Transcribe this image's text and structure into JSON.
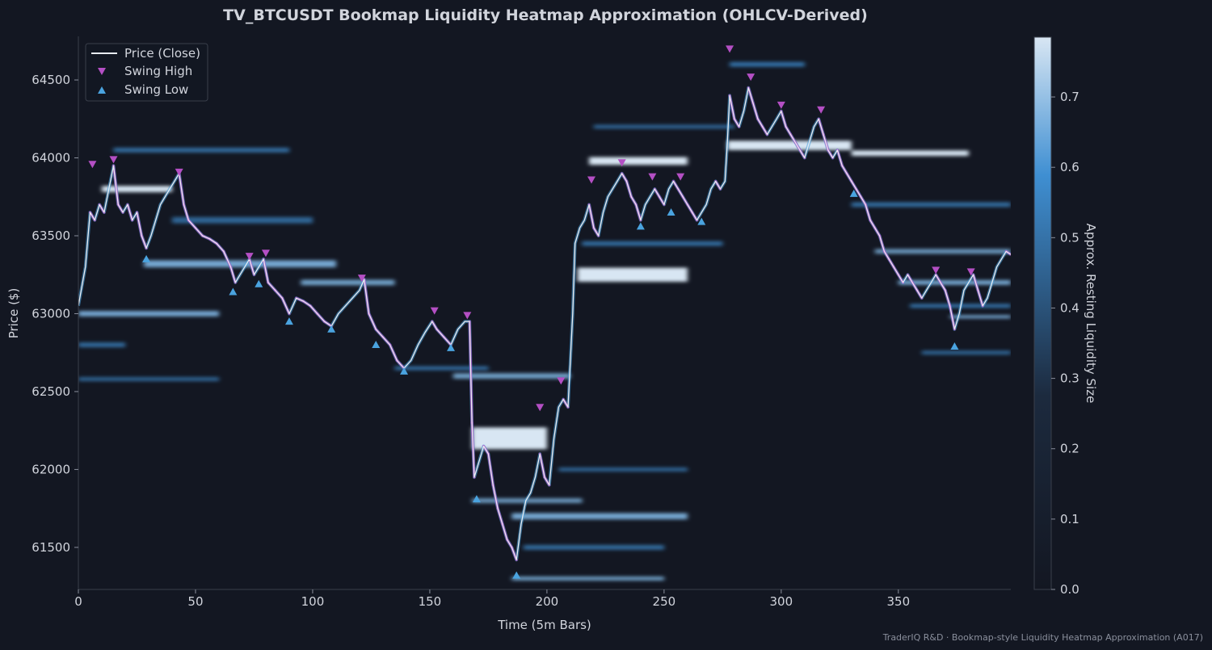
{
  "chart_data": {
    "type": "heatmap",
    "title": "TV_BTCUSDT Bookmap Liquidity Heatmap Approximation (OHLCV-Derived)",
    "xlabel": "Time (5m Bars)",
    "ylabel": "Price ($)",
    "xlim": [
      0,
      398
    ],
    "ylim": [
      61230,
      64780
    ],
    "x_ticks": [
      "0",
      "50",
      "100",
      "150",
      "200",
      "250",
      "300",
      "350"
    ],
    "x_tick_values": [
      0,
      50,
      100,
      150,
      200,
      250,
      300,
      350
    ],
    "y_ticks": [
      "61500",
      "62000",
      "62500",
      "63000",
      "63500",
      "64000",
      "64500"
    ],
    "y_tick_values": [
      61500,
      62000,
      62500,
      63000,
      63500,
      64000,
      64500
    ],
    "colorbar": {
      "label": "Approx. Resting Liquidity Size",
      "range": [
        0,
        0.785
      ],
      "ticks": [
        "0.0",
        "0.1",
        "0.2",
        "0.3",
        "0.4",
        "0.5",
        "0.6",
        "0.7"
      ],
      "tick_values": [
        0,
        0.1,
        0.2,
        0.3,
        0.4,
        0.5,
        0.6,
        0.7
      ]
    },
    "legend": {
      "placement": "top-left",
      "entries": [
        "Price (Close)",
        "Swing High",
        "Swing Low"
      ]
    },
    "series": [
      {
        "name": "Price (Close)",
        "points": [
          [
            0,
            63050
          ],
          [
            3,
            63300
          ],
          [
            5,
            63650
          ],
          [
            7,
            63600
          ],
          [
            9,
            63700
          ],
          [
            11,
            63650
          ],
          [
            13,
            63800
          ],
          [
            15,
            63950
          ],
          [
            17,
            63700
          ],
          [
            19,
            63650
          ],
          [
            21,
            63700
          ],
          [
            23,
            63600
          ],
          [
            25,
            63650
          ],
          [
            27,
            63500
          ],
          [
            29,
            63420
          ],
          [
            31,
            63500
          ],
          [
            33,
            63600
          ],
          [
            35,
            63700
          ],
          [
            37,
            63750
          ],
          [
            39,
            63800
          ],
          [
            41,
            63850
          ],
          [
            43,
            63900
          ],
          [
            45,
            63700
          ],
          [
            47,
            63600
          ],
          [
            50,
            63550
          ],
          [
            53,
            63500
          ],
          [
            56,
            63480
          ],
          [
            59,
            63450
          ],
          [
            62,
            63400
          ],
          [
            65,
            63300
          ],
          [
            67,
            63200
          ],
          [
            69,
            63250
          ],
          [
            71,
            63300
          ],
          [
            73,
            63350
          ],
          [
            75,
            63250
          ],
          [
            77,
            63300
          ],
          [
            79,
            63350
          ],
          [
            81,
            63200
          ],
          [
            84,
            63150
          ],
          [
            87,
            63100
          ],
          [
            90,
            63000
          ],
          [
            93,
            63100
          ],
          [
            96,
            63080
          ],
          [
            99,
            63050
          ],
          [
            102,
            63000
          ],
          [
            105,
            62950
          ],
          [
            108,
            62920
          ],
          [
            111,
            63000
          ],
          [
            114,
            63050
          ],
          [
            117,
            63100
          ],
          [
            120,
            63150
          ],
          [
            122,
            63220
          ],
          [
            124,
            63000
          ],
          [
            127,
            62900
          ],
          [
            130,
            62850
          ],
          [
            133,
            62800
          ],
          [
            136,
            62700
          ],
          [
            139,
            62650
          ],
          [
            142,
            62700
          ],
          [
            145,
            62800
          ],
          [
            148,
            62880
          ],
          [
            151,
            62950
          ],
          [
            153,
            62900
          ],
          [
            156,
            62850
          ],
          [
            159,
            62800
          ],
          [
            162,
            62900
          ],
          [
            165,
            62950
          ],
          [
            167,
            62950
          ],
          [
            168,
            62300
          ],
          [
            169,
            61950
          ],
          [
            171,
            62050
          ],
          [
            173,
            62150
          ],
          [
            175,
            62100
          ],
          [
            177,
            61900
          ],
          [
            179,
            61750
          ],
          [
            181,
            61650
          ],
          [
            183,
            61550
          ],
          [
            185,
            61500
          ],
          [
            187,
            61420
          ],
          [
            189,
            61650
          ],
          [
            191,
            61800
          ],
          [
            193,
            61850
          ],
          [
            195,
            61950
          ],
          [
            197,
            62100
          ],
          [
            199,
            61950
          ],
          [
            201,
            61900
          ],
          [
            203,
            62200
          ],
          [
            205,
            62400
          ],
          [
            207,
            62450
          ],
          [
            209,
            62400
          ],
          [
            211,
            63000
          ],
          [
            212,
            63450
          ],
          [
            214,
            63550
          ],
          [
            216,
            63600
          ],
          [
            218,
            63700
          ],
          [
            220,
            63550
          ],
          [
            222,
            63500
          ],
          [
            224,
            63650
          ],
          [
            226,
            63750
          ],
          [
            228,
            63800
          ],
          [
            230,
            63850
          ],
          [
            232,
            63900
          ],
          [
            234,
            63850
          ],
          [
            236,
            63750
          ],
          [
            238,
            63700
          ],
          [
            240,
            63600
          ],
          [
            242,
            63700
          ],
          [
            244,
            63750
          ],
          [
            246,
            63800
          ],
          [
            248,
            63750
          ],
          [
            250,
            63700
          ],
          [
            252,
            63800
          ],
          [
            254,
            63850
          ],
          [
            256,
            63800
          ],
          [
            258,
            63750
          ],
          [
            260,
            63700
          ],
          [
            262,
            63650
          ],
          [
            264,
            63600
          ],
          [
            266,
            63650
          ],
          [
            268,
            63700
          ],
          [
            270,
            63800
          ],
          [
            272,
            63850
          ],
          [
            274,
            63800
          ],
          [
            276,
            63850
          ],
          [
            277,
            64100
          ],
          [
            278,
            64400
          ],
          [
            280,
            64250
          ],
          [
            282,
            64200
          ],
          [
            284,
            64300
          ],
          [
            286,
            64450
          ],
          [
            288,
            64350
          ],
          [
            290,
            64250
          ],
          [
            292,
            64200
          ],
          [
            294,
            64150
          ],
          [
            296,
            64200
          ],
          [
            298,
            64250
          ],
          [
            300,
            64300
          ],
          [
            302,
            64200
          ],
          [
            304,
            64150
          ],
          [
            306,
            64100
          ],
          [
            308,
            64050
          ],
          [
            310,
            64000
          ],
          [
            312,
            64100
          ],
          [
            314,
            64200
          ],
          [
            316,
            64250
          ],
          [
            318,
            64150
          ],
          [
            320,
            64050
          ],
          [
            322,
            64000
          ],
          [
            324,
            64050
          ],
          [
            326,
            63950
          ],
          [
            328,
            63900
          ],
          [
            330,
            63850
          ],
          [
            332,
            63800
          ],
          [
            334,
            63750
          ],
          [
            336,
            63700
          ],
          [
            338,
            63600
          ],
          [
            340,
            63550
          ],
          [
            342,
            63500
          ],
          [
            344,
            63400
          ],
          [
            346,
            63350
          ],
          [
            348,
            63300
          ],
          [
            350,
            63250
          ],
          [
            352,
            63200
          ],
          [
            354,
            63250
          ],
          [
            356,
            63200
          ],
          [
            358,
            63150
          ],
          [
            360,
            63100
          ],
          [
            362,
            63150
          ],
          [
            364,
            63200
          ],
          [
            366,
            63250
          ],
          [
            368,
            63200
          ],
          [
            370,
            63150
          ],
          [
            372,
            63050
          ],
          [
            374,
            62900
          ],
          [
            376,
            63000
          ],
          [
            378,
            63150
          ],
          [
            380,
            63200
          ],
          [
            382,
            63250
          ],
          [
            384,
            63150
          ],
          [
            386,
            63050
          ],
          [
            388,
            63100
          ],
          [
            390,
            63200
          ],
          [
            392,
            63300
          ],
          [
            394,
            63350
          ],
          [
            396,
            63400
          ],
          [
            398,
            63380
          ]
        ]
      },
      {
        "name": "Swing High",
        "points": [
          [
            6,
            63960
          ],
          [
            15,
            63990
          ],
          [
            43,
            63910
          ],
          [
            73,
            63370
          ],
          [
            80,
            63390
          ],
          [
            121,
            63230
          ],
          [
            152,
            63020
          ],
          [
            166,
            62990
          ],
          [
            197,
            62400
          ],
          [
            206,
            62570
          ],
          [
            219,
            63860
          ],
          [
            232,
            63970
          ],
          [
            245,
            63880
          ],
          [
            257,
            63880
          ],
          [
            278,
            64700
          ],
          [
            287,
            64520
          ],
          [
            300,
            64340
          ],
          [
            317,
            64310
          ],
          [
            366,
            63280
          ],
          [
            381,
            63270
          ]
        ]
      },
      {
        "name": "Swing Low",
        "points": [
          [
            29,
            63350
          ],
          [
            66,
            63140
          ],
          [
            77,
            63190
          ],
          [
            90,
            62950
          ],
          [
            108,
            62900
          ],
          [
            127,
            62800
          ],
          [
            139,
            62630
          ],
          [
            159,
            62780
          ],
          [
            170,
            61810
          ],
          [
            187,
            61320
          ],
          [
            240,
            63560
          ],
          [
            253,
            63650
          ],
          [
            266,
            63590
          ],
          [
            331,
            63770
          ],
          [
            374,
            62790
          ]
        ]
      }
    ],
    "liquidity_bands": [
      {
        "price": 63000,
        "x_start": 0,
        "x_end": 60,
        "intensity": 0.55,
        "thickness": 35
      },
      {
        "price": 62800,
        "x_start": 0,
        "x_end": 20,
        "intensity": 0.35,
        "thickness": 30
      },
      {
        "price": 62580,
        "x_start": 0,
        "x_end": 60,
        "intensity": 0.3,
        "thickness": 25
      },
      {
        "price": 63320,
        "x_start": 28,
        "x_end": 110,
        "intensity": 0.55,
        "thickness": 45
      },
      {
        "price": 63800,
        "x_start": 10,
        "x_end": 40,
        "intensity": 0.7,
        "thickness": 40
      },
      {
        "price": 64050,
        "x_start": 15,
        "x_end": 90,
        "intensity": 0.35,
        "thickness": 30
      },
      {
        "price": 63600,
        "x_start": 40,
        "x_end": 100,
        "intensity": 0.3,
        "thickness": 40
      },
      {
        "price": 63200,
        "x_start": 95,
        "x_end": 135,
        "intensity": 0.5,
        "thickness": 35
      },
      {
        "price": 62600,
        "x_start": 160,
        "x_end": 210,
        "intensity": 0.5,
        "thickness": 35
      },
      {
        "price": 62650,
        "x_start": 135,
        "x_end": 175,
        "intensity": 0.35,
        "thickness": 25
      },
      {
        "price": 62200,
        "x_start": 168,
        "x_end": 200,
        "intensity": 0.7,
        "thickness": 140
      },
      {
        "price": 61800,
        "x_start": 168,
        "x_end": 215,
        "intensity": 0.45,
        "thickness": 30
      },
      {
        "price": 61700,
        "x_start": 185,
        "x_end": 260,
        "intensity": 0.55,
        "thickness": 40
      },
      {
        "price": 61500,
        "x_start": 190,
        "x_end": 250,
        "intensity": 0.35,
        "thickness": 30
      },
      {
        "price": 61300,
        "x_start": 185,
        "x_end": 250,
        "intensity": 0.5,
        "thickness": 25
      },
      {
        "price": 62000,
        "x_start": 205,
        "x_end": 260,
        "intensity": 0.3,
        "thickness": 25
      },
      {
        "price": 63250,
        "x_start": 213,
        "x_end": 260,
        "intensity": 0.75,
        "thickness": 90
      },
      {
        "price": 63450,
        "x_start": 215,
        "x_end": 275,
        "intensity": 0.35,
        "thickness": 30
      },
      {
        "price": 63980,
        "x_start": 218,
        "x_end": 260,
        "intensity": 0.75,
        "thickness": 50
      },
      {
        "price": 64200,
        "x_start": 220,
        "x_end": 280,
        "intensity": 0.3,
        "thickness": 25
      },
      {
        "price": 64080,
        "x_start": 277,
        "x_end": 330,
        "intensity": 0.7,
        "thickness": 60
      },
      {
        "price": 64600,
        "x_start": 278,
        "x_end": 310,
        "intensity": 0.4,
        "thickness": 30
      },
      {
        "price": 64030,
        "x_start": 330,
        "x_end": 380,
        "intensity": 0.65,
        "thickness": 35
      },
      {
        "price": 63700,
        "x_start": 330,
        "x_end": 398,
        "intensity": 0.35,
        "thickness": 30
      },
      {
        "price": 63400,
        "x_start": 340,
        "x_end": 398,
        "intensity": 0.45,
        "thickness": 30
      },
      {
        "price": 63200,
        "x_start": 350,
        "x_end": 398,
        "intensity": 0.55,
        "thickness": 30
      },
      {
        "price": 63050,
        "x_start": 355,
        "x_end": 398,
        "intensity": 0.4,
        "thickness": 25
      },
      {
        "price": 62980,
        "x_start": 372,
        "x_end": 398,
        "intensity": 0.55,
        "thickness": 20
      },
      {
        "price": 62750,
        "x_start": 360,
        "x_end": 398,
        "intensity": 0.3,
        "thickness": 25
      }
    ]
  },
  "footer": "TraderIQ R&D · Bookmap-style Liquidity Heatmap Approximation (A017)",
  "colors": {
    "background": "#131722",
    "text": "#d1d4dc",
    "price_line": "#e8ecf2",
    "price_glow": "#4aa3df",
    "price_down": "#b44fc4",
    "swing_high": "#b44fc4",
    "swing_low": "#4aa3df",
    "heat_low": "#131722",
    "heat_mid": "#3f8fd2",
    "heat_high": "#d8e6f3"
  }
}
